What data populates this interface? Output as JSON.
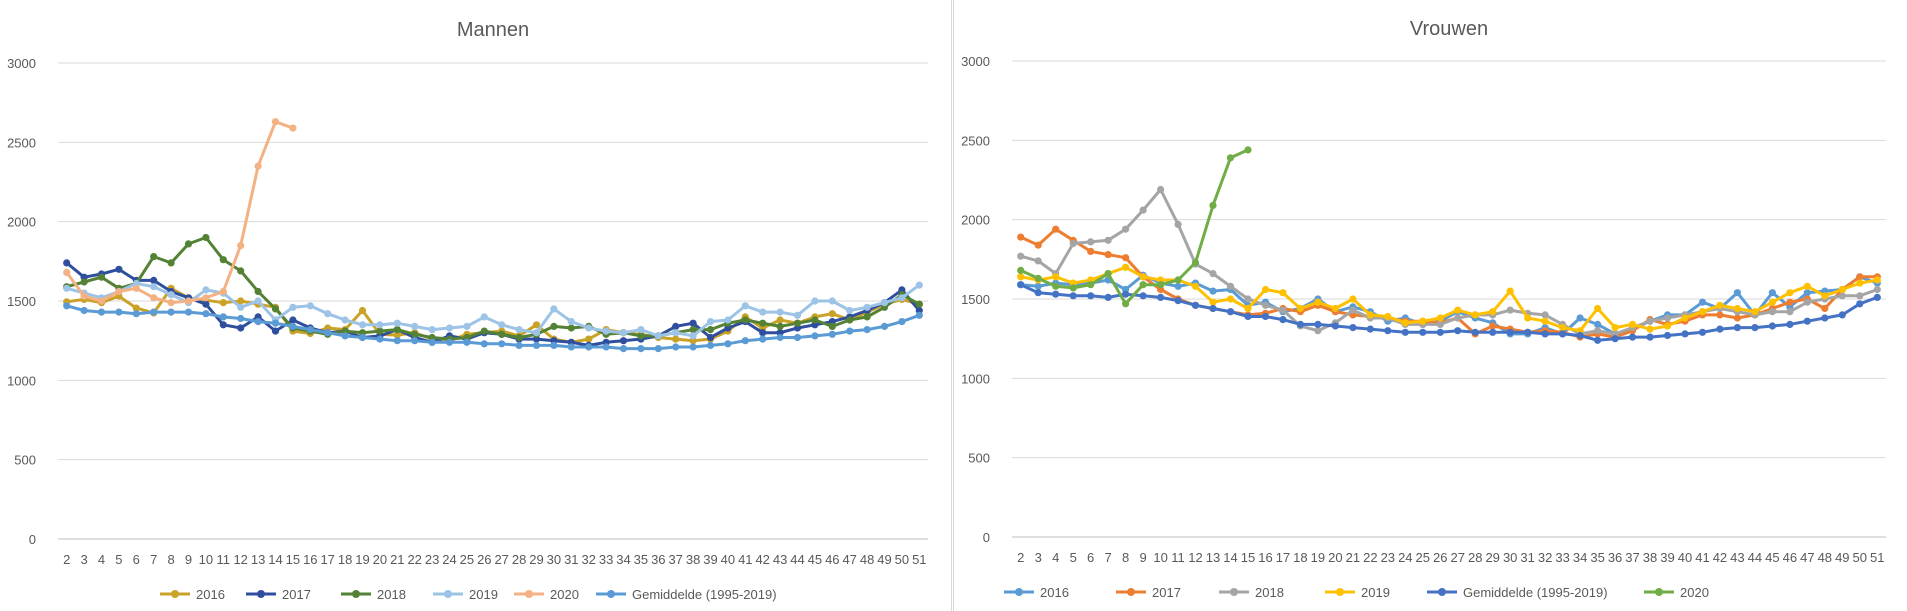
{
  "chart_data": [
    {
      "type": "line",
      "title": "Mannen",
      "xlabel": "",
      "ylabel": "",
      "ylim": [
        0,
        3000
      ],
      "yticks": [
        0,
        500,
        1000,
        1500,
        2000,
        2500,
        3000
      ],
      "grid": true,
      "legend_position": "bottom",
      "x": [
        2,
        3,
        4,
        5,
        6,
        7,
        8,
        9,
        10,
        11,
        12,
        13,
        14,
        15,
        16,
        17,
        18,
        19,
        20,
        21,
        22,
        23,
        24,
        25,
        26,
        27,
        28,
        29,
        30,
        31,
        32,
        33,
        34,
        35,
        36,
        37,
        38,
        39,
        40,
        41,
        42,
        43,
        44,
        45,
        46,
        47,
        48,
        49,
        50,
        51
      ],
      "series": [
        {
          "name": "2016",
          "color": "#c9a227",
          "values": [
            1495,
            1510,
            1490,
            1530,
            1455,
            1425,
            1580,
            1520,
            1505,
            1490,
            1500,
            1480,
            1460,
            1310,
            1295,
            1330,
            1320,
            1440,
            1290,
            1285,
            1300,
            1260,
            1250,
            1290,
            1300,
            1310,
            1280,
            1350,
            1260,
            1240,
            1260,
            1320,
            1300,
            1290,
            1270,
            1260,
            1250,
            1260,
            1310,
            1400,
            1330,
            1380,
            1360,
            1400,
            1420,
            1380,
            1430,
            1480,
            1510,
            1480
          ]
        },
        {
          "name": "2017",
          "color": "#2f4f9e",
          "values": [
            1740,
            1650,
            1670,
            1700,
            1630,
            1630,
            1560,
            1520,
            1480,
            1350,
            1330,
            1400,
            1310,
            1380,
            1330,
            1300,
            1310,
            1270,
            1280,
            1320,
            1270,
            1240,
            1280,
            1260,
            1300,
            1290,
            1260,
            1260,
            1250,
            1240,
            1220,
            1240,
            1250,
            1260,
            1280,
            1340,
            1360,
            1270,
            1330,
            1370,
            1300,
            1300,
            1330,
            1350,
            1370,
            1400,
            1440,
            1490,
            1570,
            1440
          ]
        },
        {
          "name": "2018",
          "color": "#548235",
          "values": [
            1590,
            1620,
            1650,
            1580,
            1610,
            1780,
            1740,
            1860,
            1900,
            1760,
            1690,
            1560,
            1450,
            1330,
            1310,
            1290,
            1310,
            1300,
            1310,
            1320,
            1290,
            1270,
            1260,
            1270,
            1310,
            1290,
            1270,
            1290,
            1340,
            1330,
            1340,
            1290,
            1300,
            1280,
            1280,
            1300,
            1320,
            1320,
            1360,
            1380,
            1360,
            1340,
            1360,
            1380,
            1340,
            1380,
            1400,
            1460,
            1540,
            1480
          ]
        },
        {
          "name": "2019",
          "color": "#9dc3e6",
          "values": [
            1580,
            1550,
            1520,
            1560,
            1610,
            1590,
            1540,
            1490,
            1570,
            1550,
            1460,
            1500,
            1380,
            1460,
            1470,
            1420,
            1380,
            1350,
            1350,
            1360,
            1340,
            1320,
            1330,
            1340,
            1400,
            1350,
            1320,
            1300,
            1450,
            1370,
            1330,
            1310,
            1300,
            1320,
            1280,
            1300,
            1280,
            1370,
            1380,
            1470,
            1430,
            1430,
            1410,
            1500,
            1500,
            1440,
            1460,
            1490,
            1520,
            1600
          ]
        },
        {
          "name": "2020",
          "color": "#f4b183",
          "values": [
            1680,
            1530,
            1500,
            1560,
            1580,
            1520,
            1490,
            1500,
            1520,
            1560,
            1850,
            2350,
            2630,
            2590,
            null,
            null,
            null,
            null,
            null,
            null,
            null,
            null,
            null,
            null,
            null,
            null,
            null,
            null,
            null,
            null,
            null,
            null,
            null,
            null,
            null,
            null,
            null,
            null,
            null,
            null,
            null,
            null,
            null,
            null,
            null,
            null,
            null,
            null,
            null,
            null
          ]
        },
        {
          "name": "Gemiddelde (1995-2019)",
          "color": "#5b9bd5",
          "values": [
            1470,
            1440,
            1430,
            1430,
            1420,
            1430,
            1430,
            1430,
            1420,
            1400,
            1390,
            1370,
            1360,
            1340,
            1320,
            1300,
            1280,
            1270,
            1260,
            1250,
            1250,
            1240,
            1240,
            1240,
            1230,
            1230,
            1220,
            1220,
            1220,
            1210,
            1210,
            1210,
            1200,
            1200,
            1200,
            1210,
            1210,
            1220,
            1230,
            1250,
            1260,
            1270,
            1270,
            1280,
            1290,
            1310,
            1320,
            1340,
            1370,
            1410
          ]
        }
      ]
    },
    {
      "type": "line",
      "title": "Vrouwen",
      "xlabel": "",
      "ylabel": "",
      "ylim": [
        0,
        3000
      ],
      "yticks": [
        0,
        500,
        1000,
        1500,
        2000,
        2500,
        3000
      ],
      "grid": true,
      "legend_position": "bottom",
      "x": [
        2,
        3,
        4,
        5,
        6,
        7,
        8,
        9,
        10,
        11,
        12,
        13,
        14,
        15,
        16,
        17,
        18,
        19,
        20,
        21,
        22,
        23,
        24,
        25,
        26,
        27,
        28,
        29,
        30,
        31,
        32,
        33,
        34,
        35,
        36,
        37,
        38,
        39,
        40,
        41,
        42,
        43,
        44,
        45,
        46,
        47,
        48,
        49,
        50,
        51
      ],
      "series": [
        {
          "name": "2016",
          "color": "#5b9bd5",
          "values": [
            1590,
            1580,
            1600,
            1590,
            1600,
            1620,
            1560,
            1650,
            1600,
            1580,
            1600,
            1550,
            1560,
            1460,
            1480,
            1420,
            1440,
            1500,
            1420,
            1450,
            1420,
            1360,
            1380,
            1340,
            1360,
            1420,
            1380,
            1350,
            1280,
            1280,
            1320,
            1280,
            1380,
            1340,
            1280,
            1310,
            1360,
            1400,
            1400,
            1480,
            1440,
            1540,
            1400,
            1540,
            1450,
            1540,
            1550,
            1560,
            1640,
            1600
          ]
        },
        {
          "name": "2017",
          "color": "#ed7d31",
          "values": [
            1890,
            1840,
            1940,
            1870,
            1800,
            1780,
            1760,
            1640,
            1560,
            1500,
            1460,
            1440,
            1420,
            1400,
            1410,
            1440,
            1420,
            1460,
            1420,
            1400,
            1390,
            1380,
            1360,
            1360,
            1350,
            1380,
            1280,
            1330,
            1310,
            1290,
            1300,
            1290,
            1260,
            1280,
            1260,
            1300,
            1370,
            1340,
            1360,
            1400,
            1400,
            1380,
            1400,
            1440,
            1480,
            1500,
            1440,
            1560,
            1640,
            1640
          ]
        },
        {
          "name": "2018",
          "color": "#a5a5a5",
          "values": [
            1770,
            1740,
            1660,
            1850,
            1860,
            1870,
            1940,
            2060,
            2190,
            1970,
            1720,
            1660,
            1580,
            1500,
            1460,
            1430,
            1330,
            1300,
            1350,
            1430,
            1380,
            1380,
            1340,
            1340,
            1340,
            1380,
            1400,
            1400,
            1430,
            1410,
            1400,
            1340,
            1280,
            1300,
            1280,
            1320,
            1360,
            1380,
            1400,
            1420,
            1440,
            1420,
            1400,
            1420,
            1420,
            1480,
            1500,
            1520,
            1520,
            1560
          ]
        },
        {
          "name": "2019",
          "color": "#ffc000",
          "values": [
            1640,
            1620,
            1640,
            1600,
            1620,
            1660,
            1700,
            1640,
            1620,
            1620,
            1580,
            1480,
            1500,
            1440,
            1560,
            1540,
            1440,
            1480,
            1440,
            1500,
            1400,
            1390,
            1350,
            1360,
            1380,
            1430,
            1400,
            1420,
            1550,
            1380,
            1360,
            1320,
            1300,
            1440,
            1320,
            1340,
            1310,
            1330,
            1380,
            1420,
            1460,
            1440,
            1420,
            1480,
            1540,
            1580,
            1520,
            1560,
            1600,
            1620
          ]
        },
        {
          "name": "Gemiddelde (1995-2019)",
          "color": "#4472c4",
          "values": [
            1590,
            1540,
            1530,
            1520,
            1520,
            1510,
            1530,
            1520,
            1510,
            1490,
            1460,
            1440,
            1420,
            1390,
            1390,
            1370,
            1340,
            1340,
            1330,
            1320,
            1310,
            1300,
            1290,
            1290,
            1290,
            1300,
            1290,
            1290,
            1290,
            1290,
            1280,
            1280,
            1270,
            1240,
            1250,
            1260,
            1260,
            1270,
            1280,
            1290,
            1310,
            1320,
            1320,
            1330,
            1340,
            1360,
            1380,
            1400,
            1470,
            1510
          ]
        },
        {
          "name": "2020",
          "color": "#70ad47",
          "values": [
            1680,
            1630,
            1580,
            1570,
            1590,
            1660,
            1470,
            1590,
            1590,
            1620,
            1730,
            2090,
            2390,
            2440,
            null,
            null,
            null,
            null,
            null,
            null,
            null,
            null,
            null,
            null,
            null,
            null,
            null,
            null,
            null,
            null,
            null,
            null,
            null,
            null,
            null,
            null,
            null,
            null,
            null,
            null,
            null,
            null,
            null,
            null,
            null,
            null,
            null,
            null,
            null,
            null
          ]
        }
      ]
    }
  ]
}
